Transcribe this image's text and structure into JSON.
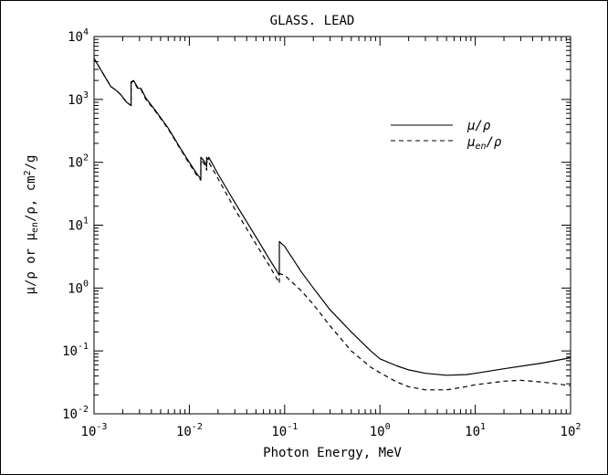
{
  "chart_data": {
    "type": "line",
    "title": "GLASS. LEAD",
    "xlabel": "Photon Energy, MeV",
    "ylabel": {
      "main": "μ/ρ or μ",
      "sub": "en",
      "tail": "/ρ, cm",
      "sup": "2",
      "end": "/g"
    },
    "x_scale": "log",
    "y_scale": "log",
    "xlim": [
      0.001,
      100
    ],
    "ylim": [
      0.01,
      10000
    ],
    "x_ticks": [
      {
        "value": 0.001,
        "base": "10",
        "exp": "-3"
      },
      {
        "value": 0.01,
        "base": "10",
        "exp": "-2"
      },
      {
        "value": 0.1,
        "base": "10",
        "exp": "-1"
      },
      {
        "value": 1,
        "base": "10",
        "exp": "0"
      },
      {
        "value": 10,
        "base": "10",
        "exp": "1"
      },
      {
        "value": 100,
        "base": "10",
        "exp": "2"
      }
    ],
    "y_ticks": [
      {
        "value": 0.01,
        "base": "10",
        "exp": "-2"
      },
      {
        "value": 0.1,
        "base": "10",
        "exp": "-1"
      },
      {
        "value": 1,
        "base": "10",
        "exp": "0"
      },
      {
        "value": 10,
        "base": "10",
        "exp": "1"
      },
      {
        "value": 100,
        "base": "10",
        "exp": "2"
      },
      {
        "value": 1000,
        "base": "10",
        "exp": "3"
      },
      {
        "value": 10000,
        "base": "10",
        "exp": "4"
      }
    ],
    "grid": false,
    "legend_position": "top-right",
    "series": [
      {
        "name": "μ/ρ",
        "style": "solid",
        "color": "#000000",
        "points": [
          [
            0.001,
            4500
          ],
          [
            0.0015,
            1600
          ],
          [
            0.0017,
            1400
          ],
          [
            0.0019,
            1200
          ],
          [
            0.0022,
            900
          ],
          [
            0.00245,
            800
          ],
          [
            0.00245,
            1900
          ],
          [
            0.0026,
            2000
          ],
          [
            0.0029,
            1500
          ],
          [
            0.0031,
            1500
          ],
          [
            0.0035,
            1050
          ],
          [
            0.0045,
            640
          ],
          [
            0.006,
            350
          ],
          [
            0.008,
            170
          ],
          [
            0.01,
            100
          ],
          [
            0.012,
            65
          ],
          [
            0.0132,
            55
          ],
          [
            0.0132,
            120
          ],
          [
            0.0143,
            105
          ],
          [
            0.0152,
            85
          ],
          [
            0.0152,
            120
          ],
          [
            0.0158,
            110
          ],
          [
            0.016,
            120
          ],
          [
            0.02,
            65
          ],
          [
            0.03,
            23
          ],
          [
            0.05,
            6.5
          ],
          [
            0.07,
            2.8
          ],
          [
            0.088,
            1.6
          ],
          [
            0.088,
            5.5
          ],
          [
            0.1,
            4.6
          ],
          [
            0.15,
            1.8
          ],
          [
            0.2,
            1.0
          ],
          [
            0.3,
            0.45
          ],
          [
            0.5,
            0.2
          ],
          [
            0.8,
            0.1
          ],
          [
            1,
            0.075
          ],
          [
            1.5,
            0.058
          ],
          [
            2,
            0.05
          ],
          [
            3,
            0.044
          ],
          [
            5,
            0.041
          ],
          [
            8,
            0.042
          ],
          [
            10,
            0.044
          ],
          [
            20,
            0.052
          ],
          [
            50,
            0.064
          ],
          [
            100,
            0.078
          ]
        ]
      },
      {
        "name": "μ",
        "name_sub": "en",
        "name_tail": "/ρ",
        "style": "dashed",
        "color": "#000000",
        "points": [
          [
            0.001,
            4500
          ],
          [
            0.0015,
            1600
          ],
          [
            0.0017,
            1400
          ],
          [
            0.0019,
            1200
          ],
          [
            0.0022,
            900
          ],
          [
            0.00245,
            800
          ],
          [
            0.00245,
            1850
          ],
          [
            0.0026,
            1950
          ],
          [
            0.0029,
            1450
          ],
          [
            0.0031,
            1450
          ],
          [
            0.0035,
            1000
          ],
          [
            0.0045,
            620
          ],
          [
            0.006,
            340
          ],
          [
            0.008,
            165
          ],
          [
            0.01,
            95
          ],
          [
            0.012,
            62
          ],
          [
            0.0132,
            52
          ],
          [
            0.0132,
            110
          ],
          [
            0.0143,
            95
          ],
          [
            0.0152,
            75
          ],
          [
            0.0152,
            105
          ],
          [
            0.0158,
            95
          ],
          [
            0.016,
            100
          ],
          [
            0.02,
            55
          ],
          [
            0.03,
            18
          ],
          [
            0.05,
            5.0
          ],
          [
            0.07,
            2.2
          ],
          [
            0.088,
            1.2
          ],
          [
            0.088,
            1.7
          ],
          [
            0.1,
            1.6
          ],
          [
            0.15,
            0.9
          ],
          [
            0.2,
            0.55
          ],
          [
            0.3,
            0.25
          ],
          [
            0.5,
            0.1
          ],
          [
            0.8,
            0.055
          ],
          [
            1,
            0.045
          ],
          [
            1.5,
            0.032
          ],
          [
            2,
            0.027
          ],
          [
            3,
            0.024
          ],
          [
            5,
            0.024
          ],
          [
            8,
            0.027
          ],
          [
            10,
            0.029
          ],
          [
            20,
            0.033
          ],
          [
            30,
            0.034
          ],
          [
            50,
            0.032
          ],
          [
            100,
            0.028
          ]
        ]
      }
    ]
  }
}
